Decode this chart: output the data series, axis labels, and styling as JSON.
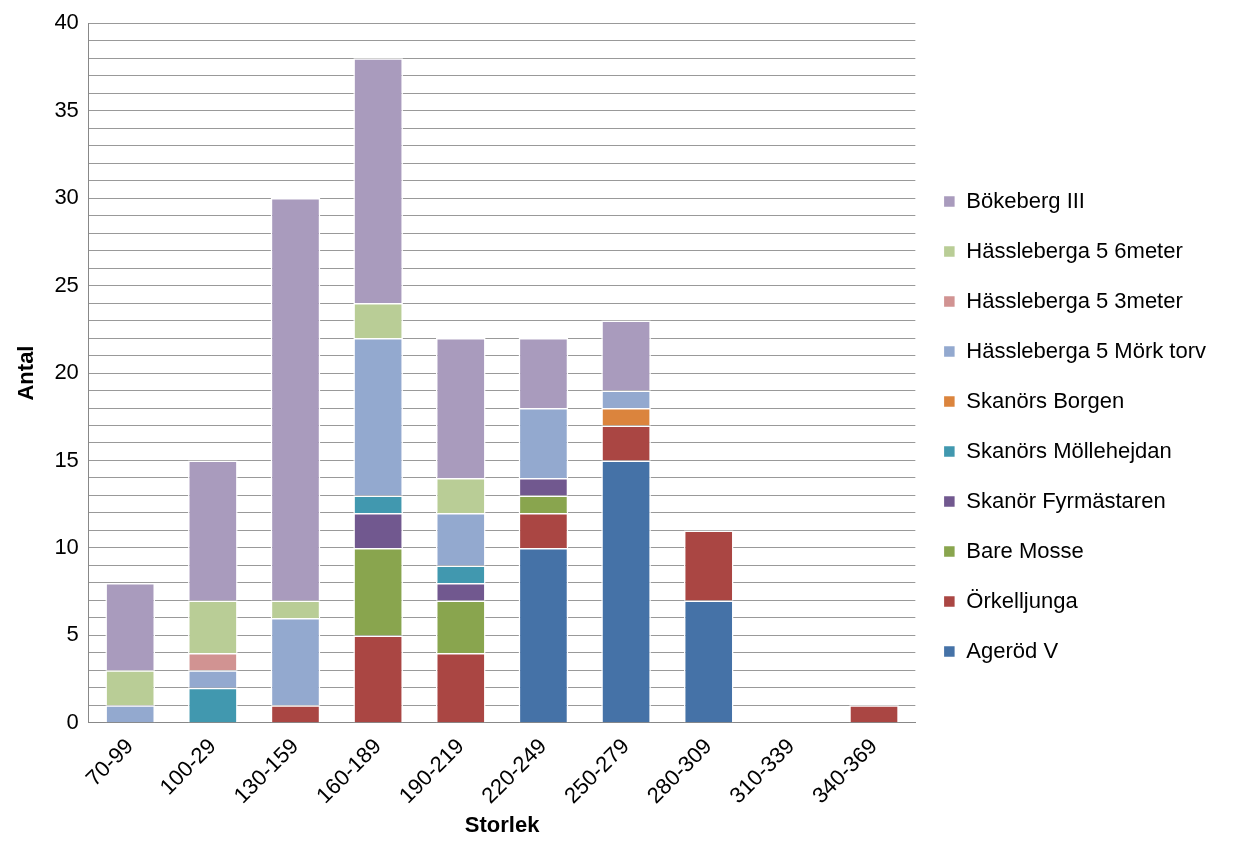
{
  "chart_data": {
    "type": "bar",
    "stacked": true,
    "xlabel": "Storlek",
    "ylabel": "Antal",
    "categories": [
      "70-99",
      "100-29",
      "130-159",
      "160-189",
      "190-219",
      "220-249",
      "250-279",
      "280-309",
      "310-339",
      "340-369"
    ],
    "series": [
      {
        "name": "Ageröd V",
        "color": "#4572a7",
        "values": [
          null,
          null,
          null,
          null,
          null,
          10,
          15,
          7,
          null,
          null
        ]
      },
      {
        "name": "Örkelljunga",
        "color": "#aa4643",
        "values": [
          null,
          null,
          1,
          5,
          4,
          2,
          2,
          4,
          null,
          1
        ]
      },
      {
        "name": "Bare Mosse",
        "color": "#89a54e",
        "values": [
          null,
          null,
          null,
          5,
          3,
          1,
          null,
          null,
          null,
          null
        ]
      },
      {
        "name": "Skanör Fyrmästaren",
        "color": "#71588f",
        "values": [
          null,
          null,
          null,
          2,
          1,
          1,
          null,
          null,
          null,
          null
        ]
      },
      {
        "name": "Skanörs Möllehejdan",
        "color": "#4198af",
        "values": [
          null,
          2,
          null,
          1,
          1,
          null,
          null,
          null,
          null,
          null
        ]
      },
      {
        "name": "Skanörs Borgen",
        "color": "#db843d",
        "values": [
          null,
          null,
          null,
          null,
          null,
          null,
          1,
          null,
          null,
          null
        ]
      },
      {
        "name": "Hässleberga 5 Mörk torv",
        "color": "#93a9cf",
        "values": [
          1,
          1,
          5,
          9,
          3,
          4,
          1,
          null,
          null,
          null
        ]
      },
      {
        "name": "Hässleberga 5 3meter",
        "color": "#d19392",
        "values": [
          null,
          1,
          null,
          null,
          null,
          null,
          null,
          null,
          null,
          null
        ]
      },
      {
        "name": "Hässleberga 5 6meter",
        "color": "#b9cd96",
        "values": [
          2,
          3,
          1,
          2,
          2,
          null,
          null,
          null,
          null,
          null
        ]
      },
      {
        "name": "Bökeberg III",
        "color": "#a99bbd",
        "values": [
          5,
          8,
          23,
          14,
          8,
          4,
          4,
          null,
          null,
          null
        ]
      }
    ],
    "ylim": [
      0,
      40
    ],
    "yticks": [
      0,
      {
        "value": 1,
        "label": null
      },
      {
        "value": 2,
        "label": null
      },
      {
        "value": 3,
        "label": null
      },
      {
        "value": 4,
        "label": null
      },
      5,
      {
        "value": 6,
        "label": null
      },
      {
        "value": 7,
        "label": null
      },
      {
        "value": 8,
        "label": null
      },
      {
        "value": 9,
        "label": null
      },
      10,
      {
        "value": 11,
        "label": null
      },
      {
        "value": 12,
        "label": null
      },
      {
        "value": 13,
        "label": null
      },
      {
        "value": 14,
        "label": null
      },
      15,
      {
        "value": 16,
        "label": null
      },
      {
        "value": 17,
        "label": null
      },
      {
        "value": 18,
        "label": null
      },
      {
        "value": 19,
        "label": null
      },
      20,
      {
        "value": 21,
        "label": null
      },
      {
        "value": 22,
        "label": null
      },
      {
        "value": 23,
        "label": null
      },
      {
        "value": 24,
        "label": null
      },
      25,
      {
        "value": 26,
        "label": null
      },
      {
        "value": 27,
        "label": null
      },
      {
        "value": 28,
        "label": null
      },
      {
        "value": 29,
        "label": null
      },
      30,
      {
        "value": 31,
        "label": null
      },
      {
        "value": 32,
        "label": null
      },
      {
        "value": 33,
        "label": null
      },
      {
        "value": 34,
        "label": null
      },
      35,
      {
        "value": 36,
        "label": null
      },
      {
        "value": 37,
        "label": null
      },
      {
        "value": 38,
        "label": null
      },
      {
        "value": 39,
        "label": null
      },
      40
    ],
    "grid": "y",
    "legend": "right"
  }
}
